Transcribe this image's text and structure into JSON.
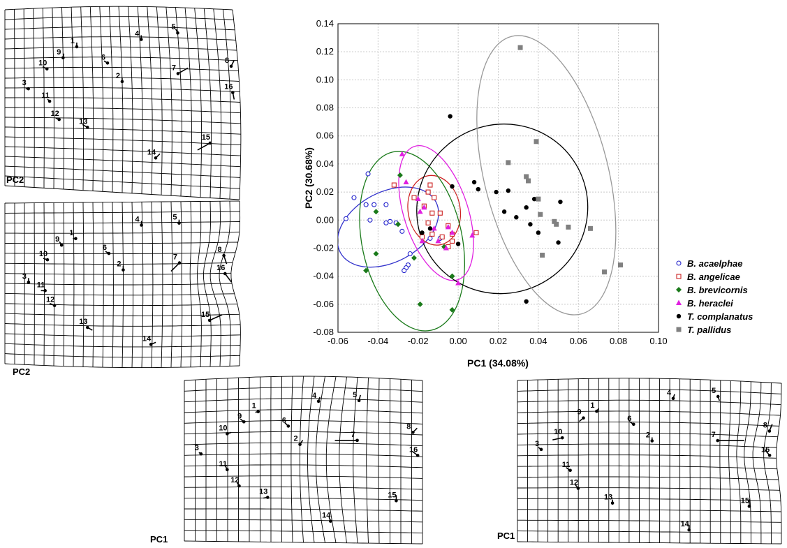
{
  "chart_data": {
    "type": "scatter",
    "xlabel": "PC1 (34.08%)",
    "ylabel": "PC2 (30.68%)",
    "xlim": [
      -0.06,
      0.1
    ],
    "ylim": [
      -0.08,
      0.14
    ],
    "xticks": [
      "-0.06",
      "-0.04",
      "-0.02",
      "0.00",
      "0.02",
      "0.04",
      "0.06",
      "0.08",
      "0.10"
    ],
    "yticks": [
      "-0.08",
      "-0.06",
      "-0.04",
      "-0.02",
      "0.00",
      "0.02",
      "0.04",
      "0.06",
      "0.08",
      "0.10",
      "0.12",
      "0.14"
    ],
    "grid": true,
    "legend_position": "right",
    "series": [
      {
        "name": "B. acaelphae",
        "marker": "circle-open",
        "color": "#2222cc",
        "points": [
          [
            -0.045,
            0.033
          ],
          [
            -0.052,
            0.016
          ],
          [
            -0.046,
            0.011
          ],
          [
            -0.042,
            0.011
          ],
          [
            -0.036,
            0.011
          ],
          [
            -0.044,
            0.0
          ],
          [
            -0.056,
            0.001
          ],
          [
            -0.034,
            -0.001
          ],
          [
            -0.031,
            -0.002
          ],
          [
            -0.036,
            -0.002
          ],
          [
            -0.028,
            -0.008
          ],
          [
            -0.024,
            -0.024
          ],
          [
            -0.025,
            -0.032
          ],
          [
            -0.026,
            -0.034
          ],
          [
            -0.027,
            -0.036
          ],
          [
            -0.014,
            -0.013
          ],
          [
            -0.009,
            -0.013
          ]
        ]
      },
      {
        "name": "B. angelicae",
        "marker": "square-open",
        "color": "#cc2222",
        "points": [
          [
            -0.032,
            0.025
          ],
          [
            -0.022,
            0.016
          ],
          [
            -0.017,
            0.01
          ],
          [
            -0.015,
            0.02
          ],
          [
            -0.014,
            0.025
          ],
          [
            -0.012,
            0.016
          ],
          [
            -0.009,
            0.005
          ],
          [
            -0.013,
            0.005
          ],
          [
            -0.015,
            -0.002
          ],
          [
            -0.013,
            -0.01
          ],
          [
            -0.018,
            -0.012
          ],
          [
            -0.008,
            -0.012
          ],
          [
            -0.005,
            -0.004
          ],
          [
            -0.003,
            -0.01
          ],
          [
            -0.003,
            -0.015
          ],
          [
            0.009,
            -0.009
          ],
          [
            -0.005,
            -0.019
          ]
        ]
      },
      {
        "name": "B. brevicornis",
        "marker": "diamond",
        "color": "#1a7a1a",
        "points": [
          [
            -0.029,
            0.032
          ],
          [
            -0.041,
            0.006
          ],
          [
            -0.03,
            -0.003
          ],
          [
            -0.041,
            -0.024
          ],
          [
            -0.046,
            -0.036
          ],
          [
            -0.022,
            -0.027
          ],
          [
            -0.019,
            -0.06
          ],
          [
            -0.003,
            -0.04
          ],
          [
            -0.003,
            -0.064
          ],
          [
            -0.007,
            -0.019
          ]
        ]
      },
      {
        "name": "B. heraclei",
        "marker": "triangle",
        "color": "#e020e0",
        "points": [
          [
            -0.028,
            0.047
          ],
          [
            -0.026,
            0.027
          ],
          [
            -0.02,
            0.015
          ],
          [
            -0.017,
            0.009
          ],
          [
            -0.019,
            0.006
          ],
          [
            -0.012,
            -0.006
          ],
          [
            -0.005,
            -0.005
          ],
          [
            -0.003,
            -0.009
          ],
          [
            -0.006,
            -0.02
          ],
          [
            -0.01,
            -0.015
          ],
          [
            -0.018,
            -0.015
          ],
          [
            0.0,
            -0.045
          ],
          [
            0.007,
            -0.011
          ]
        ]
      },
      {
        "name": "T. complanatus",
        "marker": "circle-filled",
        "color": "#000000",
        "points": [
          [
            -0.004,
            0.074
          ],
          [
            -0.003,
            0.024
          ],
          [
            0.008,
            0.027
          ],
          [
            0.01,
            0.022
          ],
          [
            0.019,
            0.02
          ],
          [
            0.025,
            0.021
          ],
          [
            0.023,
            0.006
          ],
          [
            0.029,
            0.002
          ],
          [
            0.034,
            0.009
          ],
          [
            0.038,
            0.015
          ],
          [
            0.051,
            0.013
          ],
          [
            0.036,
            -0.003
          ],
          [
            0.04,
            -0.009
          ],
          [
            0.05,
            -0.016
          ],
          [
            0.034,
            -0.058
          ],
          [
            0.0,
            -0.017
          ],
          [
            -0.014,
            -0.006
          ],
          [
            -0.018,
            -0.009
          ]
        ]
      },
      {
        "name": "T. pallidus",
        "marker": "square-filled",
        "color": "#808080",
        "points": [
          [
            0.031,
            0.123
          ],
          [
            0.039,
            0.056
          ],
          [
            0.025,
            0.041
          ],
          [
            0.034,
            0.031
          ],
          [
            0.035,
            0.028
          ],
          [
            0.04,
            0.015
          ],
          [
            0.041,
            0.004
          ],
          [
            0.048,
            -0.001
          ],
          [
            0.049,
            -0.003
          ],
          [
            0.055,
            -0.005
          ],
          [
            0.066,
            -0.006
          ],
          [
            0.042,
            -0.025
          ],
          [
            0.073,
            -0.037
          ],
          [
            0.081,
            -0.032
          ]
        ]
      }
    ],
    "ellipses": [
      {
        "series": "B. acaelphae",
        "color": "#3333cc",
        "cx": -0.035,
        "cy": -0.005,
        "rx": 0.027,
        "ry": 0.025,
        "rot": -28
      },
      {
        "series": "B. angelicae",
        "color": "#cc2222",
        "cx": -0.012,
        "cy": 0.007,
        "rx": 0.013,
        "ry": 0.025,
        "rot": -10
      },
      {
        "series": "B. brevicornis",
        "color": "#1a7a1a",
        "cx": -0.023,
        "cy": -0.015,
        "rx": 0.025,
        "ry": 0.065,
        "rot": -12
      },
      {
        "series": "B. heraclei",
        "color": "#e020e0",
        "cx": -0.011,
        "cy": 0.005,
        "rx": 0.016,
        "ry": 0.05,
        "rot": -18
      },
      {
        "series": "T. complanatus",
        "color": "#000000",
        "cx": 0.022,
        "cy": 0.008,
        "rx": 0.043,
        "ry": 0.06,
        "rot": -35
      },
      {
        "series": "T. pallidus",
        "color": "#999999",
        "cx": 0.044,
        "cy": 0.032,
        "rx": 0.031,
        "ry": 0.102,
        "rot": -14
      }
    ]
  },
  "grids": [
    {
      "caption": "PC2",
      "landmarks": [
        "1",
        "2",
        "3",
        "4",
        "5",
        "6",
        "7",
        "8",
        "9",
        "10",
        "11",
        "12",
        "13",
        "14",
        "15",
        "16"
      ]
    },
    {
      "caption": "PC2",
      "landmarks": [
        "1",
        "2",
        "3",
        "4",
        "5",
        "6",
        "7",
        "8",
        "9",
        "10",
        "11",
        "12",
        "13",
        "14",
        "15",
        "16"
      ]
    },
    {
      "caption": "PC1",
      "landmarks": [
        "1",
        "2",
        "3",
        "4",
        "5",
        "6",
        "7",
        "8",
        "9",
        "10",
        "11",
        "12",
        "13",
        "14",
        "15",
        "16"
      ]
    },
    {
      "caption": "PC1",
      "landmarks": [
        "1",
        "2",
        "3",
        "4",
        "5",
        "6",
        "7",
        "8",
        "9",
        "10",
        "11",
        "12",
        "13",
        "14",
        "15",
        "16"
      ]
    }
  ]
}
